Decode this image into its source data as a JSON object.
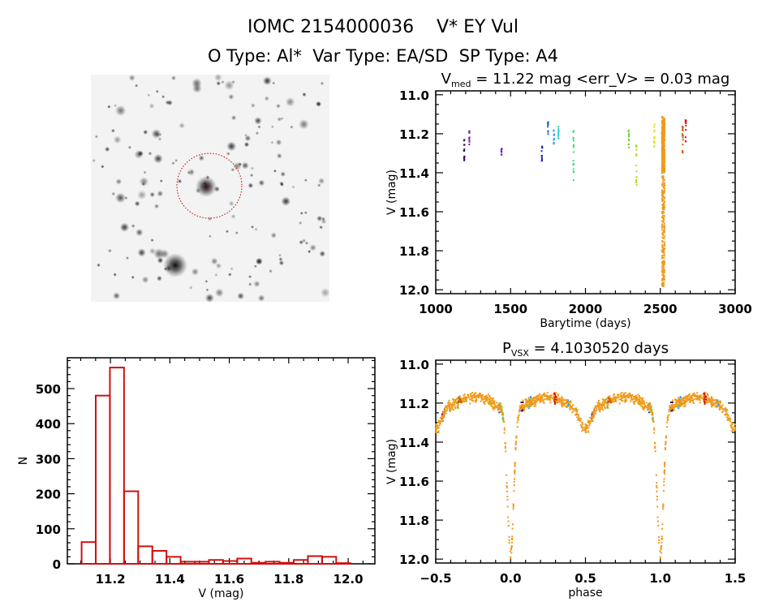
{
  "header": {
    "title": "IOMC 2154000036    V* EY Vul",
    "subtitle": "O Type: Al*  Var Type: EA/SD  SP Type: A4"
  },
  "chart_data": [
    {
      "id": "finder-image",
      "type": "image",
      "description_marker": "red dotted circle around target star"
    },
    {
      "id": "light-curve",
      "type": "scatter",
      "title_main": "V",
      "title_sub": "med",
      "title_rest": " = 11.22 mag <err_V> = 0.03 mag",
      "xlabel": "Barytime (days)",
      "ylabel": "V (mag)",
      "xlim": [
        1000,
        3000
      ],
      "ylim": [
        10.98,
        12.02
      ],
      "y_inverted": true,
      "xticks": [
        "1000",
        "1500",
        "2000",
        "2500",
        "3000"
      ],
      "yticks": [
        "11.0",
        "11.2",
        "11.4",
        "11.6",
        "11.8",
        "12.0"
      ],
      "seasons": [
        {
          "t": 1190,
          "vmin": 11.23,
          "vmax": 11.35,
          "n": 14,
          "color": "#3a0a6e",
          "phase": 0.08
        },
        {
          "t": 1225,
          "vmin": 11.17,
          "vmax": 11.27,
          "n": 10,
          "color": "#7020a8",
          "phase": 0.55
        },
        {
          "t": 1440,
          "vmin": 11.27,
          "vmax": 11.31,
          "n": 8,
          "color": "#5818b0",
          "phase": 0.55
        },
        {
          "t": 1710,
          "vmin": 11.26,
          "vmax": 11.35,
          "n": 10,
          "color": "#2020b8",
          "phase": 0.93
        },
        {
          "t": 1750,
          "vmin": 11.14,
          "vmax": 11.21,
          "n": 10,
          "color": "#2060d8",
          "phase": 0.13
        },
        {
          "t": 1790,
          "vmin": 11.18,
          "vmax": 11.27,
          "n": 10,
          "color": "#30a0e0",
          "phase": 0.38
        },
        {
          "t": 1820,
          "vmin": 11.16,
          "vmax": 11.23,
          "n": 12,
          "color": "#30d0d0",
          "phase": 0.13
        },
        {
          "t": 1920,
          "vmin": 11.18,
          "vmax": 11.45,
          "n": 18,
          "color": "#30e070",
          "phase": 0.94
        },
        {
          "t": 2290,
          "vmin": 11.17,
          "vmax": 11.28,
          "n": 10,
          "color": "#70d030",
          "phase": 0.65
        },
        {
          "t": 2340,
          "vmin": 11.25,
          "vmax": 11.47,
          "n": 16,
          "color": "#a8e020",
          "phase": 0.86
        },
        {
          "t": 2460,
          "vmin": 11.14,
          "vmax": 11.27,
          "n": 14,
          "color": "#e0e020",
          "phase": 0.62
        },
        {
          "t": 2520,
          "vmin": 11.11,
          "vmax": 11.99,
          "n": 700,
          "color": "#f09a1a",
          "phase": null
        },
        {
          "t": 2650,
          "vmin": 11.16,
          "vmax": 11.31,
          "n": 14,
          "color": "#d05a10",
          "phase": 0.66
        },
        {
          "t": 2670,
          "vmin": 11.11,
          "vmax": 11.24,
          "n": 12,
          "color": "#d81010",
          "phase": 0.3
        }
      ]
    },
    {
      "id": "histogram",
      "type": "bar",
      "xlabel": "V (mag)",
      "ylabel": "N",
      "xlim": [
        11.055,
        12.09
      ],
      "ylim": [
        0,
        588
      ],
      "xticks": [
        "11.2",
        "11.4",
        "11.6",
        "11.8",
        "12.0"
      ],
      "yticks": [
        "0",
        "100",
        "200",
        "300",
        "400",
        "500"
      ],
      "bin_start": 11.103,
      "bin_width": 0.0476,
      "values": [
        62,
        480,
        560,
        207,
        50,
        37,
        20,
        6,
        6,
        11,
        8,
        15,
        3,
        6,
        3,
        11,
        22,
        20,
        2
      ],
      "color": "#d01010"
    },
    {
      "id": "phase-curve",
      "type": "scatter",
      "title_main": "P",
      "title_sub": "VSX",
      "title_rest": " = 4.1030520 days",
      "xlabel": "phase",
      "ylabel": "V (mag)",
      "xlim": [
        -0.5,
        1.5
      ],
      "ylim": [
        10.98,
        12.02
      ],
      "y_inverted": true,
      "xticks": [
        "-0.5",
        "0.0",
        "0.5",
        "1.0",
        "1.5"
      ],
      "yticks": [
        "11.0",
        "11.2",
        "11.4",
        "11.6",
        "11.8",
        "12.0"
      ],
      "period_days": 4.103052,
      "baseline_mag": 11.2,
      "primary_min_mag": 11.95,
      "secondary_min_mag": 11.3
    }
  ]
}
